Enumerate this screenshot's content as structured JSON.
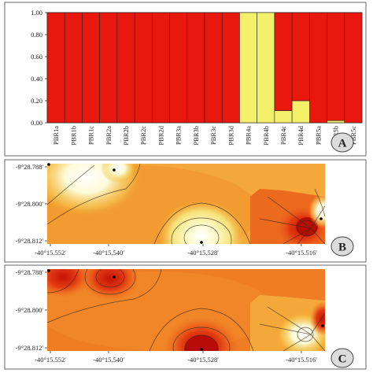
{
  "chart_data": [
    {
      "panel": "A",
      "type": "bar",
      "stacked": true,
      "categories": [
        "PBR1a",
        "PBR1b",
        "PBR1c",
        "PBR2a",
        "PBR2b",
        "PBR2c",
        "PBR2d",
        "PBR3a",
        "PBR3b",
        "PBR3c",
        "PBR3d",
        "PBR4a",
        "PBR4b",
        "PBR4c",
        "PBR4d",
        "PBR5a",
        "PBR5b",
        "PBR5c"
      ],
      "series": [
        {
          "values": [
            0,
            0,
            0,
            0,
            0,
            0,
            0,
            0,
            0,
            0,
            0,
            1.0,
            1.0,
            0.11,
            0.2,
            0,
            0.02,
            0
          ],
          "color": "#f5f06a"
        },
        {
          "values": [
            1,
            1,
            1,
            1,
            1,
            1,
            1,
            1,
            1,
            1,
            1,
            0,
            0,
            0.89,
            0.8,
            1,
            0.98,
            1
          ],
          "color": "#e8180e"
        }
      ],
      "yticks": [
        "1.00",
        "0.80",
        "0.60",
        "0.40",
        "0.20",
        "0.00"
      ],
      "ylim": [
        0,
        1
      ]
    },
    {
      "panel": "B",
      "type": "heatmap",
      "yticks": [
        "-9°28.788'",
        "-9°28.800'",
        "-9°28.812'"
      ],
      "xticks": [
        "-40°15.552'",
        "-40°15.540'",
        "-40°15.528'",
        "-40°15.516'"
      ]
    },
    {
      "panel": "C",
      "type": "heatmap",
      "yticks": [
        "-9°28.788'",
        "-9°28.800'",
        "-9°28.812'"
      ],
      "xticks": [
        "-40°15.552'",
        "-40°15.540'",
        "-40°15.528'",
        "-40°15.516'"
      ]
    }
  ],
  "panel_labels": [
    "A",
    "B",
    "C"
  ]
}
